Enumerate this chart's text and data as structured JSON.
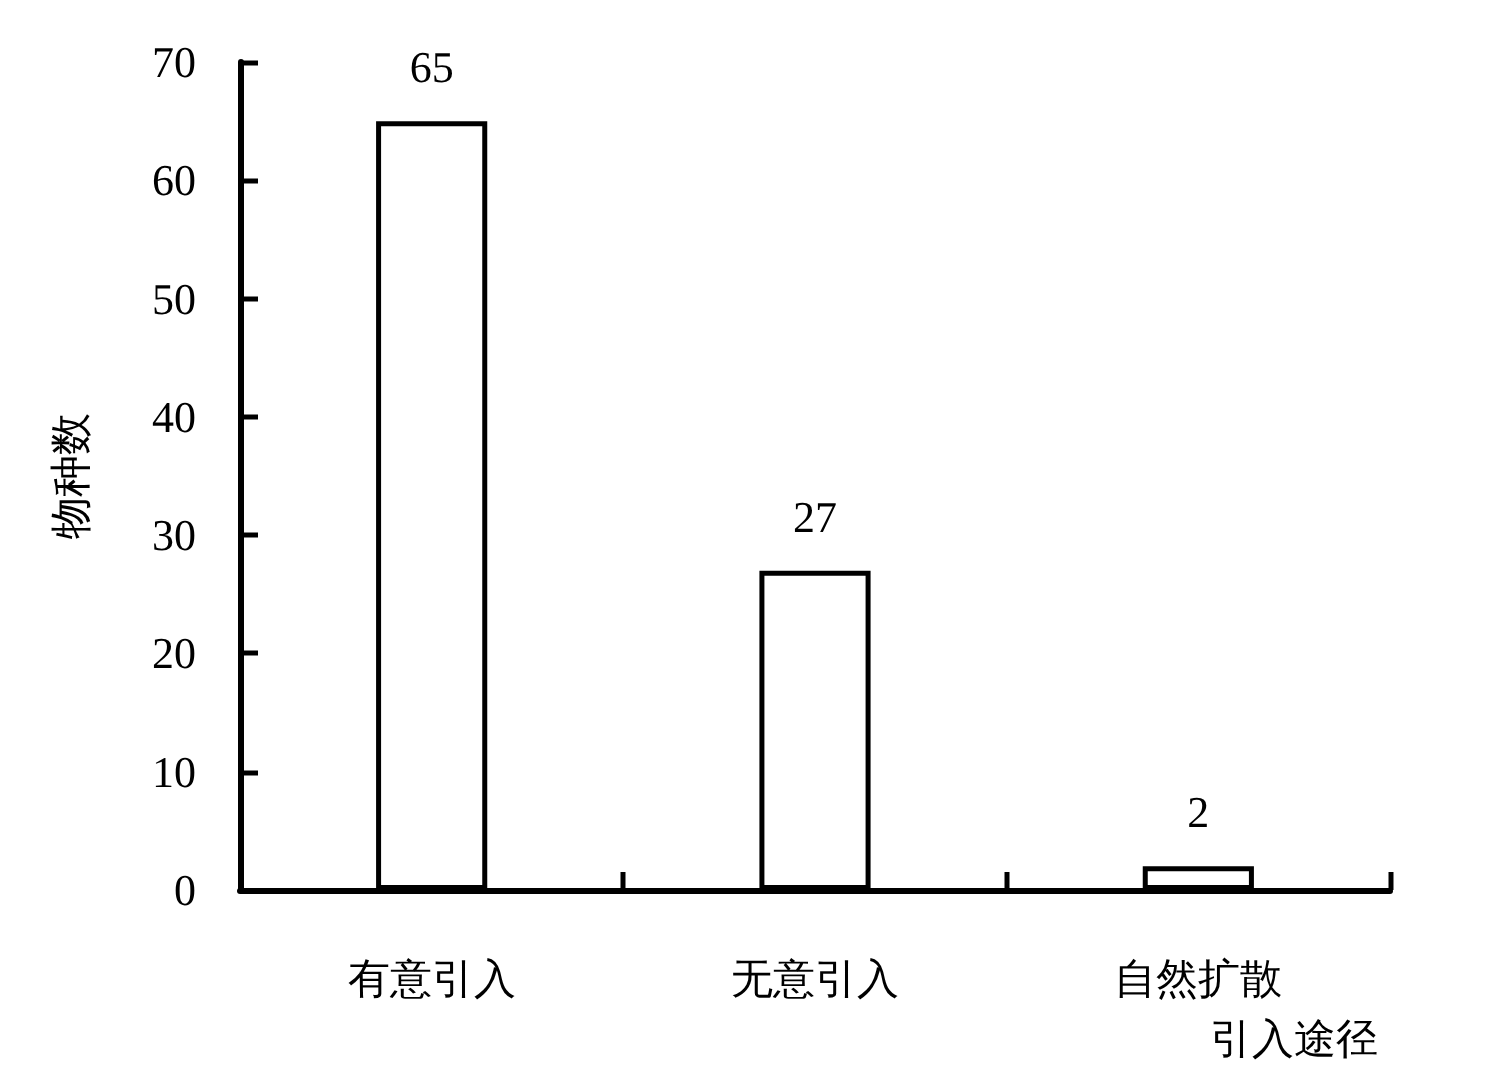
{
  "chart_data": {
    "type": "bar",
    "xlabel": "引入途径",
    "ylabel": "物种数",
    "categories": [
      "有意引入",
      "无意引入",
      "自然扩散"
    ],
    "values": [
      65,
      27,
      2
    ],
    "color": "#ffffff",
    "ylim": [
      0,
      70
    ],
    "yticks": [
      0,
      10,
      20,
      30,
      40,
      50,
      60,
      70
    ],
    "grid": false,
    "data_labels": true
  }
}
